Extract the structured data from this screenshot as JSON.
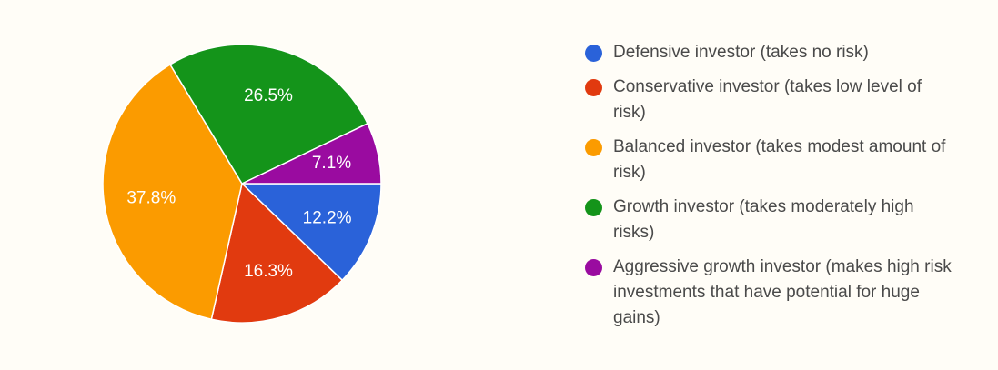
{
  "chart_data": {
    "type": "pie",
    "title": "",
    "legend_position": "right",
    "start_angle_deg": 0,
    "direction": "clockwise",
    "slices": [
      {
        "label": "Defensive investor (takes no risk)",
        "value": 12.2,
        "display": "12.2%",
        "color": "#2a62d9"
      },
      {
        "label": "Conservative investor (takes low level of risk)",
        "value": 16.3,
        "display": "16.3%",
        "color": "#e13a0f"
      },
      {
        "label": "Balanced investor (takes modest amount of risk)",
        "value": 37.8,
        "display": "37.8%",
        "color": "#fb9b00"
      },
      {
        "label": "Growth investor (takes moderately high risks)",
        "value": 26.5,
        "display": "26.5%",
        "color": "#14941a"
      },
      {
        "label": "Aggressive growth investor (makes high risk investments that have potential for huge gains)",
        "value": 7.1,
        "display": "7.1%",
        "color": "#9a0ba0"
      }
    ]
  }
}
